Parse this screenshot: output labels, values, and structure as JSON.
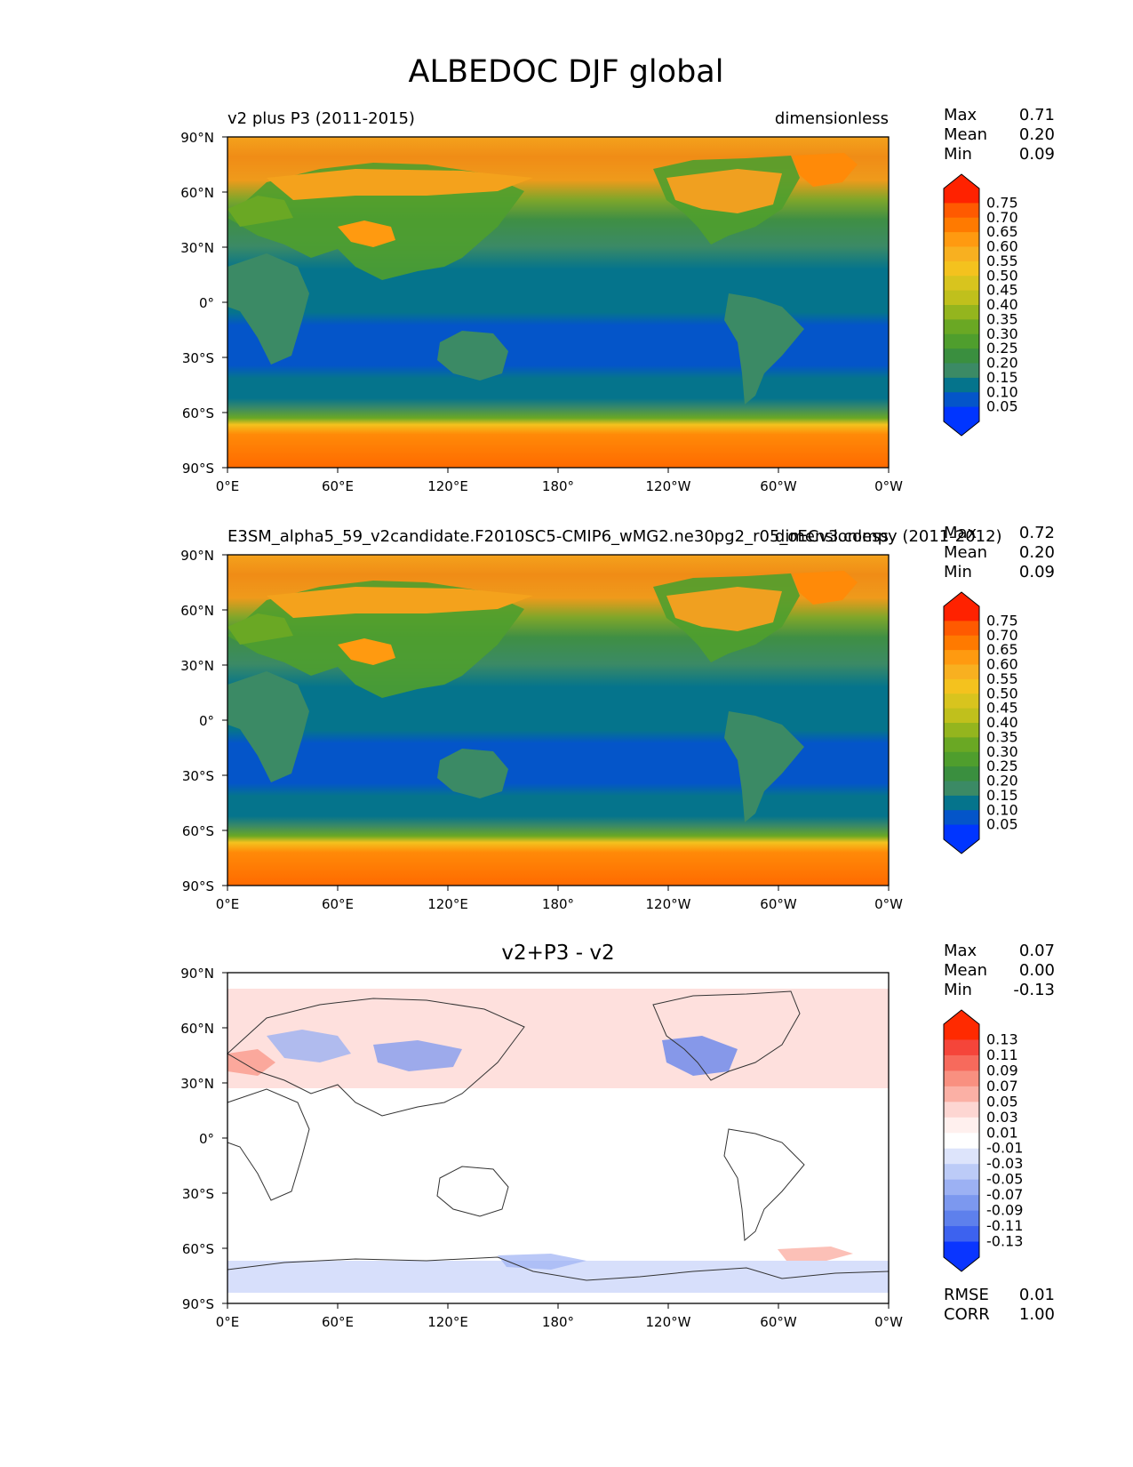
{
  "figure": {
    "title": "ALBEDOC DJF global",
    "colors": {
      "ocean_low": "#0455c9",
      "ocean_mid": "#05748c",
      "land_low": "#3b8a65",
      "land_mid": "#4f9e2d",
      "land_high": "#f0a020",
      "snow": "#ff7a00",
      "diff_pos": "#fdd6d2",
      "diff_neg": "#d3dcfb"
    }
  },
  "chart_data": [
    {
      "type": "heatmap",
      "panel": "test",
      "left_title": "v2 plus P3 (2011-2015)",
      "right_title": "dimensionless",
      "center_title": "",
      "x_tick_labels": [
        "0°E",
        "60°E",
        "120°E",
        "180°",
        "120°W",
        "60°W",
        "0°W"
      ],
      "y_tick_labels": [
        "90°N",
        "60°N",
        "30°N",
        "0°",
        "30°S",
        "60°S",
        "90°S"
      ],
      "xlim": [
        0,
        360
      ],
      "ylim": [
        -90,
        90
      ],
      "stats": [
        {
          "label": "Max",
          "value": "0.71"
        },
        {
          "label": "Mean",
          "value": "0.20"
        },
        {
          "label": "Min",
          "value": "0.09"
        }
      ],
      "colorbar": {
        "levels": [
          "0.75",
          "0.70",
          "0.65",
          "0.60",
          "0.55",
          "0.50",
          "0.45",
          "0.40",
          "0.35",
          "0.30",
          "0.25",
          "0.20",
          "0.15",
          "0.10",
          "0.05"
        ],
        "colors": [
          "#ff2200",
          "#ff5a00",
          "#ff7a00",
          "#ff9a10",
          "#f8b020",
          "#f4c21e",
          "#d8c41e",
          "#c0c01c",
          "#94b51e",
          "#6aa824",
          "#4f9e2d",
          "#3a8f3f",
          "#3b8a65",
          "#05748c",
          "#0455c9",
          "#0035ff"
        ]
      },
      "bottom_stats": []
    },
    {
      "type": "heatmap",
      "panel": "reference",
      "left_title": "E3SM_alpha5_59_v2candidate.F2010SC5-CMIP6_wMG2.ne30pg2_r05_oECv3.compy (2011-2012)",
      "right_title": "dimensionless",
      "center_title": "",
      "x_tick_labels": [
        "0°E",
        "60°E",
        "120°E",
        "180°",
        "120°W",
        "60°W",
        "0°W"
      ],
      "y_tick_labels": [
        "90°N",
        "60°N",
        "30°N",
        "0°",
        "30°S",
        "60°S",
        "90°S"
      ],
      "xlim": [
        0,
        360
      ],
      "ylim": [
        -90,
        90
      ],
      "stats": [
        {
          "label": "Max",
          "value": "0.72"
        },
        {
          "label": "Mean",
          "value": "0.20"
        },
        {
          "label": "Min",
          "value": "0.09"
        }
      ],
      "colorbar": {
        "levels": [
          "0.75",
          "0.70",
          "0.65",
          "0.60",
          "0.55",
          "0.50",
          "0.45",
          "0.40",
          "0.35",
          "0.30",
          "0.25",
          "0.20",
          "0.15",
          "0.10",
          "0.05"
        ],
        "colors": [
          "#ff2200",
          "#ff5a00",
          "#ff7a00",
          "#ff9a10",
          "#f8b020",
          "#f4c21e",
          "#d8c41e",
          "#c0c01c",
          "#94b51e",
          "#6aa824",
          "#4f9e2d",
          "#3a8f3f",
          "#3b8a65",
          "#05748c",
          "#0455c9",
          "#0035ff"
        ]
      },
      "bottom_stats": []
    },
    {
      "type": "heatmap",
      "panel": "difference",
      "left_title": "",
      "right_title": "",
      "center_title": "v2+P3 - v2",
      "x_tick_labels": [
        "0°E",
        "60°E",
        "120°E",
        "180°",
        "120°W",
        "60°W",
        "0°W"
      ],
      "y_tick_labels": [
        "90°N",
        "60°N",
        "30°N",
        "0°",
        "30°S",
        "60°S",
        "90°S"
      ],
      "xlim": [
        0,
        360
      ],
      "ylim": [
        -90,
        90
      ],
      "stats": [
        {
          "label": "Max",
          "value": "0.07"
        },
        {
          "label": "Mean",
          "value": "0.00"
        },
        {
          "label": "Min",
          "value": "-0.13"
        }
      ],
      "colorbar": {
        "levels": [
          "0.13",
          "0.11",
          "0.09",
          "0.07",
          "0.05",
          "0.03",
          "0.01",
          "-0.01",
          "-0.03",
          "-0.05",
          "-0.07",
          "-0.09",
          "-0.11",
          "-0.13"
        ],
        "colors": [
          "#ff2a00",
          "#f5453a",
          "#f76a5c",
          "#f99080",
          "#fbb0a5",
          "#fdd6d2",
          "#fff0ee",
          "#ffffff",
          "#dde4fb",
          "#bccbf7",
          "#9cb1f3",
          "#7c98ef",
          "#5e80ec",
          "#3d62ef",
          "#0a35ff"
        ]
      },
      "bottom_stats": [
        {
          "label": "RMSE",
          "value": "0.01"
        },
        {
          "label": "CORR",
          "value": "1.00"
        }
      ]
    }
  ]
}
